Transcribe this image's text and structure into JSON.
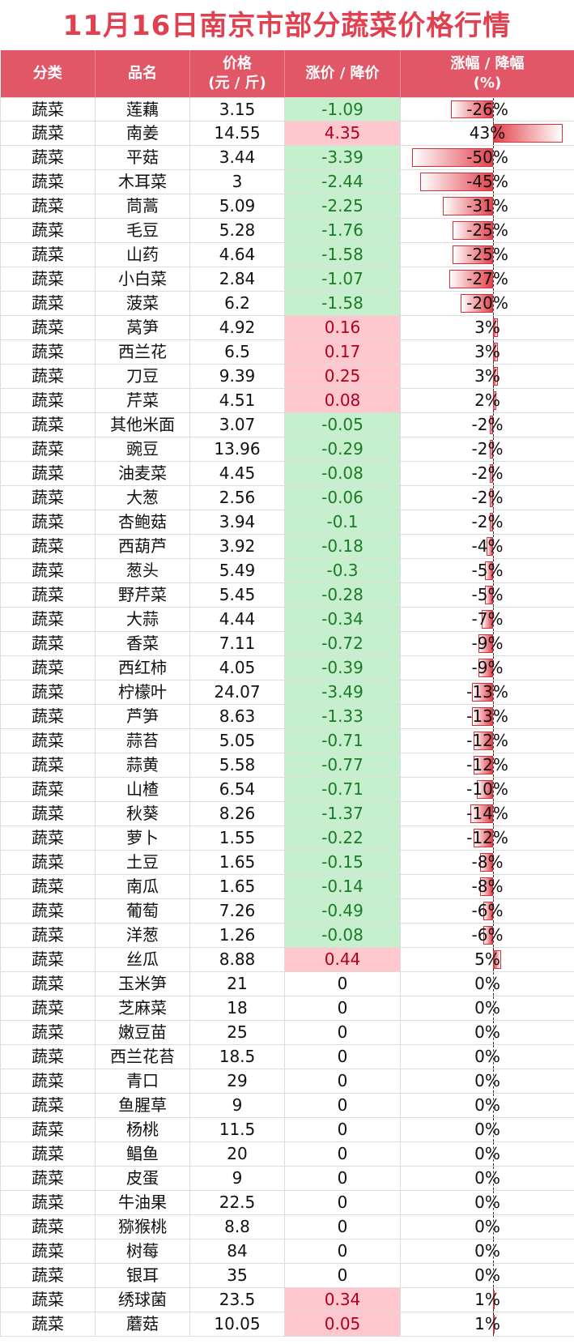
{
  "title": "11月16日南京市部分蔬菜价格行情",
  "headers": {
    "category": "分类",
    "name": "品名",
    "price_l1": "价格",
    "price_l2": "(元 / 斤)",
    "change": "涨价 / 降价",
    "pct_l1": "涨幅 / 降幅",
    "pct_l2": "(%)"
  },
  "colors": {
    "title": "#e0404f",
    "header_bg": "#e25767",
    "down_bg": "#c6efce",
    "down_text": "#1c7a27",
    "up_bg": "#ffc7ce",
    "up_text": "#b00020",
    "bar": "#e2424d"
  },
  "rows": [
    {
      "cat": "蔬菜",
      "name": "莲藕",
      "price": "3.15",
      "change": "-1.09",
      "pct": "-26%",
      "pct_val": -26
    },
    {
      "cat": "蔬菜",
      "name": "南姜",
      "price": "14.55",
      "change": "4.35",
      "pct": "43%",
      "pct_val": 43
    },
    {
      "cat": "蔬菜",
      "name": "平菇",
      "price": "3.44",
      "change": "-3.39",
      "pct": "-50%",
      "pct_val": -50
    },
    {
      "cat": "蔬菜",
      "name": "木耳菜",
      "price": "3",
      "change": "-2.44",
      "pct": "-45%",
      "pct_val": -45
    },
    {
      "cat": "蔬菜",
      "name": "茼蒿",
      "price": "5.09",
      "change": "-2.25",
      "pct": "-31%",
      "pct_val": -31
    },
    {
      "cat": "蔬菜",
      "name": "毛豆",
      "price": "5.28",
      "change": "-1.76",
      "pct": "-25%",
      "pct_val": -25
    },
    {
      "cat": "蔬菜",
      "name": "山药",
      "price": "4.64",
      "change": "-1.58",
      "pct": "-25%",
      "pct_val": -25
    },
    {
      "cat": "蔬菜",
      "name": "小白菜",
      "price": "2.84",
      "change": "-1.07",
      "pct": "-27%",
      "pct_val": -27
    },
    {
      "cat": "蔬菜",
      "name": "菠菜",
      "price": "6.2",
      "change": "-1.58",
      "pct": "-20%",
      "pct_val": -20
    },
    {
      "cat": "蔬菜",
      "name": "莴笋",
      "price": "4.92",
      "change": "0.16",
      "pct": "3%",
      "pct_val": 3
    },
    {
      "cat": "蔬菜",
      "name": "西兰花",
      "price": "6.5",
      "change": "0.17",
      "pct": "3%",
      "pct_val": 3
    },
    {
      "cat": "蔬菜",
      "name": "刀豆",
      "price": "9.39",
      "change": "0.25",
      "pct": "3%",
      "pct_val": 3
    },
    {
      "cat": "蔬菜",
      "name": "芹菜",
      "price": "4.51",
      "change": "0.08",
      "pct": "2%",
      "pct_val": 2
    },
    {
      "cat": "蔬菜",
      "name": "其他米面",
      "price": "3.07",
      "change": "-0.05",
      "pct": "-2%",
      "pct_val": -2
    },
    {
      "cat": "蔬菜",
      "name": "豌豆",
      "price": "13.96",
      "change": "-0.29",
      "pct": "-2%",
      "pct_val": -2
    },
    {
      "cat": "蔬菜",
      "name": "油麦菜",
      "price": "4.45",
      "change": "-0.08",
      "pct": "-2%",
      "pct_val": -2
    },
    {
      "cat": "蔬菜",
      "name": "大葱",
      "price": "2.56",
      "change": "-0.06",
      "pct": "-2%",
      "pct_val": -2
    },
    {
      "cat": "蔬菜",
      "name": "杏鲍菇",
      "price": "3.94",
      "change": "-0.1",
      "pct": "-2%",
      "pct_val": -2
    },
    {
      "cat": "蔬菜",
      "name": "西葫芦",
      "price": "3.92",
      "change": "-0.18",
      "pct": "-4%",
      "pct_val": -4
    },
    {
      "cat": "蔬菜",
      "name": "葱头",
      "price": "5.49",
      "change": "-0.3",
      "pct": "-5%",
      "pct_val": -5
    },
    {
      "cat": "蔬菜",
      "name": "野芹菜",
      "price": "5.45",
      "change": "-0.28",
      "pct": "-5%",
      "pct_val": -5
    },
    {
      "cat": "蔬菜",
      "name": "大蒜",
      "price": "4.44",
      "change": "-0.34",
      "pct": "-7%",
      "pct_val": -7
    },
    {
      "cat": "蔬菜",
      "name": "香菜",
      "price": "7.11",
      "change": "-0.72",
      "pct": "-9%",
      "pct_val": -9
    },
    {
      "cat": "蔬菜",
      "name": "西红柿",
      "price": "4.05",
      "change": "-0.39",
      "pct": "-9%",
      "pct_val": -9
    },
    {
      "cat": "蔬菜",
      "name": "柠檬叶",
      "price": "24.07",
      "change": "-3.49",
      "pct": "-13%",
      "pct_val": -13
    },
    {
      "cat": "蔬菜",
      "name": "芦笋",
      "price": "8.63",
      "change": "-1.33",
      "pct": "-13%",
      "pct_val": -13
    },
    {
      "cat": "蔬菜",
      "name": "蒜苔",
      "price": "5.05",
      "change": "-0.71",
      "pct": "-12%",
      "pct_val": -12
    },
    {
      "cat": "蔬菜",
      "name": "蒜黄",
      "price": "5.58",
      "change": "-0.77",
      "pct": "-12%",
      "pct_val": -12
    },
    {
      "cat": "蔬菜",
      "name": "山楂",
      "price": "6.54",
      "change": "-0.71",
      "pct": "-10%",
      "pct_val": -10
    },
    {
      "cat": "蔬菜",
      "name": "秋葵",
      "price": "8.26",
      "change": "-1.37",
      "pct": "-14%",
      "pct_val": -14
    },
    {
      "cat": "蔬菜",
      "name": "萝卜",
      "price": "1.55",
      "change": "-0.22",
      "pct": "-12%",
      "pct_val": -12
    },
    {
      "cat": "蔬菜",
      "name": "土豆",
      "price": "1.65",
      "change": "-0.15",
      "pct": "-8%",
      "pct_val": -8
    },
    {
      "cat": "蔬菜",
      "name": "南瓜",
      "price": "1.65",
      "change": "-0.14",
      "pct": "-8%",
      "pct_val": -8
    },
    {
      "cat": "蔬菜",
      "name": "葡萄",
      "price": "7.26",
      "change": "-0.49",
      "pct": "-6%",
      "pct_val": -6
    },
    {
      "cat": "蔬菜",
      "name": "洋葱",
      "price": "1.26",
      "change": "-0.08",
      "pct": "-6%",
      "pct_val": -6
    },
    {
      "cat": "蔬菜",
      "name": "丝瓜",
      "price": "8.88",
      "change": "0.44",
      "pct": "5%",
      "pct_val": 5
    },
    {
      "cat": "蔬菜",
      "name": "玉米笋",
      "price": "21",
      "change": "0",
      "pct": "0%",
      "pct_val": 0
    },
    {
      "cat": "蔬菜",
      "name": "芝麻菜",
      "price": "18",
      "change": "0",
      "pct": "0%",
      "pct_val": 0
    },
    {
      "cat": "蔬菜",
      "name": "嫩豆苗",
      "price": "25",
      "change": "0",
      "pct": "0%",
      "pct_val": 0
    },
    {
      "cat": "蔬菜",
      "name": "西兰花苔",
      "price": "18.5",
      "change": "0",
      "pct": "0%",
      "pct_val": 0
    },
    {
      "cat": "蔬菜",
      "name": "青口",
      "price": "29",
      "change": "0",
      "pct": "0%",
      "pct_val": 0
    },
    {
      "cat": "蔬菜",
      "name": "鱼腥草",
      "price": "9",
      "change": "0",
      "pct": "0%",
      "pct_val": 0
    },
    {
      "cat": "蔬菜",
      "name": "杨桃",
      "price": "11.5",
      "change": "0",
      "pct": "0%",
      "pct_val": 0
    },
    {
      "cat": "蔬菜",
      "name": "鲳鱼",
      "price": "20",
      "change": "0",
      "pct": "0%",
      "pct_val": 0
    },
    {
      "cat": "蔬菜",
      "name": "皮蛋",
      "price": "9",
      "change": "0",
      "pct": "0%",
      "pct_val": 0
    },
    {
      "cat": "蔬菜",
      "name": "牛油果",
      "price": "22.5",
      "change": "0",
      "pct": "0%",
      "pct_val": 0
    },
    {
      "cat": "蔬菜",
      "name": "猕猴桃",
      "price": "8.8",
      "change": "0",
      "pct": "0%",
      "pct_val": 0
    },
    {
      "cat": "蔬菜",
      "name": "树莓",
      "price": "84",
      "change": "0",
      "pct": "0%",
      "pct_val": 0
    },
    {
      "cat": "蔬菜",
      "name": "银耳",
      "price": "35",
      "change": "0",
      "pct": "0%",
      "pct_val": 0
    },
    {
      "cat": "蔬菜",
      "name": "绣球菌",
      "price": "23.5",
      "change": "0.34",
      "pct": "1%",
      "pct_val": 1
    },
    {
      "cat": "蔬菜",
      "name": "蘑菇",
      "price": "10.05",
      "change": "0.05",
      "pct": "1%",
      "pct_val": 1
    }
  ]
}
